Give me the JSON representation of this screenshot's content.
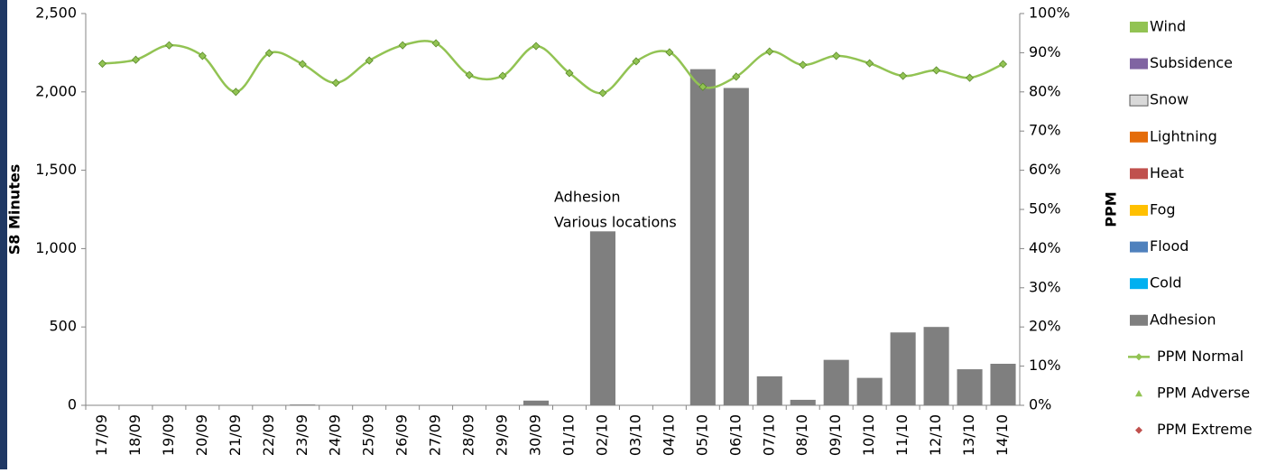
{
  "chart_data": {
    "type": "bar",
    "y_label": "S8 Minutes",
    "y2_label": "PPM",
    "annotation": [
      "Adhesion",
      "Various locations"
    ],
    "categories": [
      "17/09",
      "18/09",
      "19/09",
      "20/09",
      "21/09",
      "22/09",
      "23/09",
      "24/09",
      "25/09",
      "26/09",
      "27/09",
      "28/09",
      "29/09",
      "30/09",
      "01/10",
      "02/10",
      "03/10",
      "04/10",
      "05/10",
      "06/10",
      "07/10",
      "08/10",
      "09/10",
      "10/10",
      "11/10",
      "12/10",
      "13/10",
      "14/10"
    ],
    "series": [
      {
        "name": "Wind",
        "color": "#92c353"
      },
      {
        "name": "Subsidence",
        "color": "#8064a2"
      },
      {
        "name": "Snow",
        "color": "#d9d9d9"
      },
      {
        "name": "Lightning",
        "color": "#e46c0a"
      },
      {
        "name": "Heat",
        "color": "#c0504d"
      },
      {
        "name": "Fog",
        "color": "#ffc000"
      },
      {
        "name": "Flood",
        "color": "#4f81bd"
      },
      {
        "name": "Cold",
        "color": "#00b0f0"
      },
      {
        "name": "Adhesion",
        "color": "#7f7f7f",
        "values": [
          0,
          0,
          0,
          0,
          0,
          0,
          5,
          0,
          0,
          0,
          0,
          0,
          0,
          30,
          0,
          1110,
          0,
          0,
          2145,
          2025,
          185,
          35,
          290,
          175,
          465,
          500,
          230,
          265
        ]
      },
      {
        "name": "PPM Normal",
        "color": "#92c353",
        "axis": "y2",
        "marker": "diamond",
        "values": [
          87.2,
          88.2,
          91.9,
          89.2,
          80,
          89.9,
          87.1,
          82.3,
          88,
          91.9,
          92.4,
          84.3,
          84.1,
          91.7,
          84.8,
          79.7,
          87.8,
          90.1,
          81.3,
          83.9,
          90.3,
          86.9,
          89.2,
          87.3,
          84.1,
          85.5,
          83.6,
          87.1
        ]
      },
      {
        "name": "PPM Adverse",
        "color": "#92c353",
        "axis": "y2",
        "marker": "triangle"
      },
      {
        "name": "PPM Extreme",
        "color": "#c0504d",
        "axis": "y2",
        "marker": "diamond"
      }
    ],
    "ylim": [
      0,
      2500
    ],
    "yticks": [
      0,
      {
        "value": 500,
        "label": "500"
      },
      {
        "value": 1000,
        "label": "1,000"
      },
      {
        "value": 1500,
        "label": "1,500"
      },
      {
        "value": 2000,
        "label": "2,000"
      },
      {
        "value": 2500,
        "label": "2,500"
      }
    ],
    "y2lim": [
      0,
      100
    ],
    "y2ticks": [
      {
        "value": 0,
        "label": "0%"
      },
      {
        "value": 10,
        "label": "10%"
      },
      {
        "value": 20,
        "label": "20%"
      },
      {
        "value": 30,
        "label": "30%"
      },
      {
        "value": 40,
        "label": "40%"
      },
      {
        "value": 50,
        "label": "50%"
      },
      {
        "value": 60,
        "label": "60%"
      },
      {
        "value": 70,
        "label": "70%"
      },
      {
        "value": 80,
        "label": "80%"
      },
      {
        "value": 90,
        "label": "90%"
      },
      {
        "value": 100,
        "label": "100%"
      }
    ]
  }
}
